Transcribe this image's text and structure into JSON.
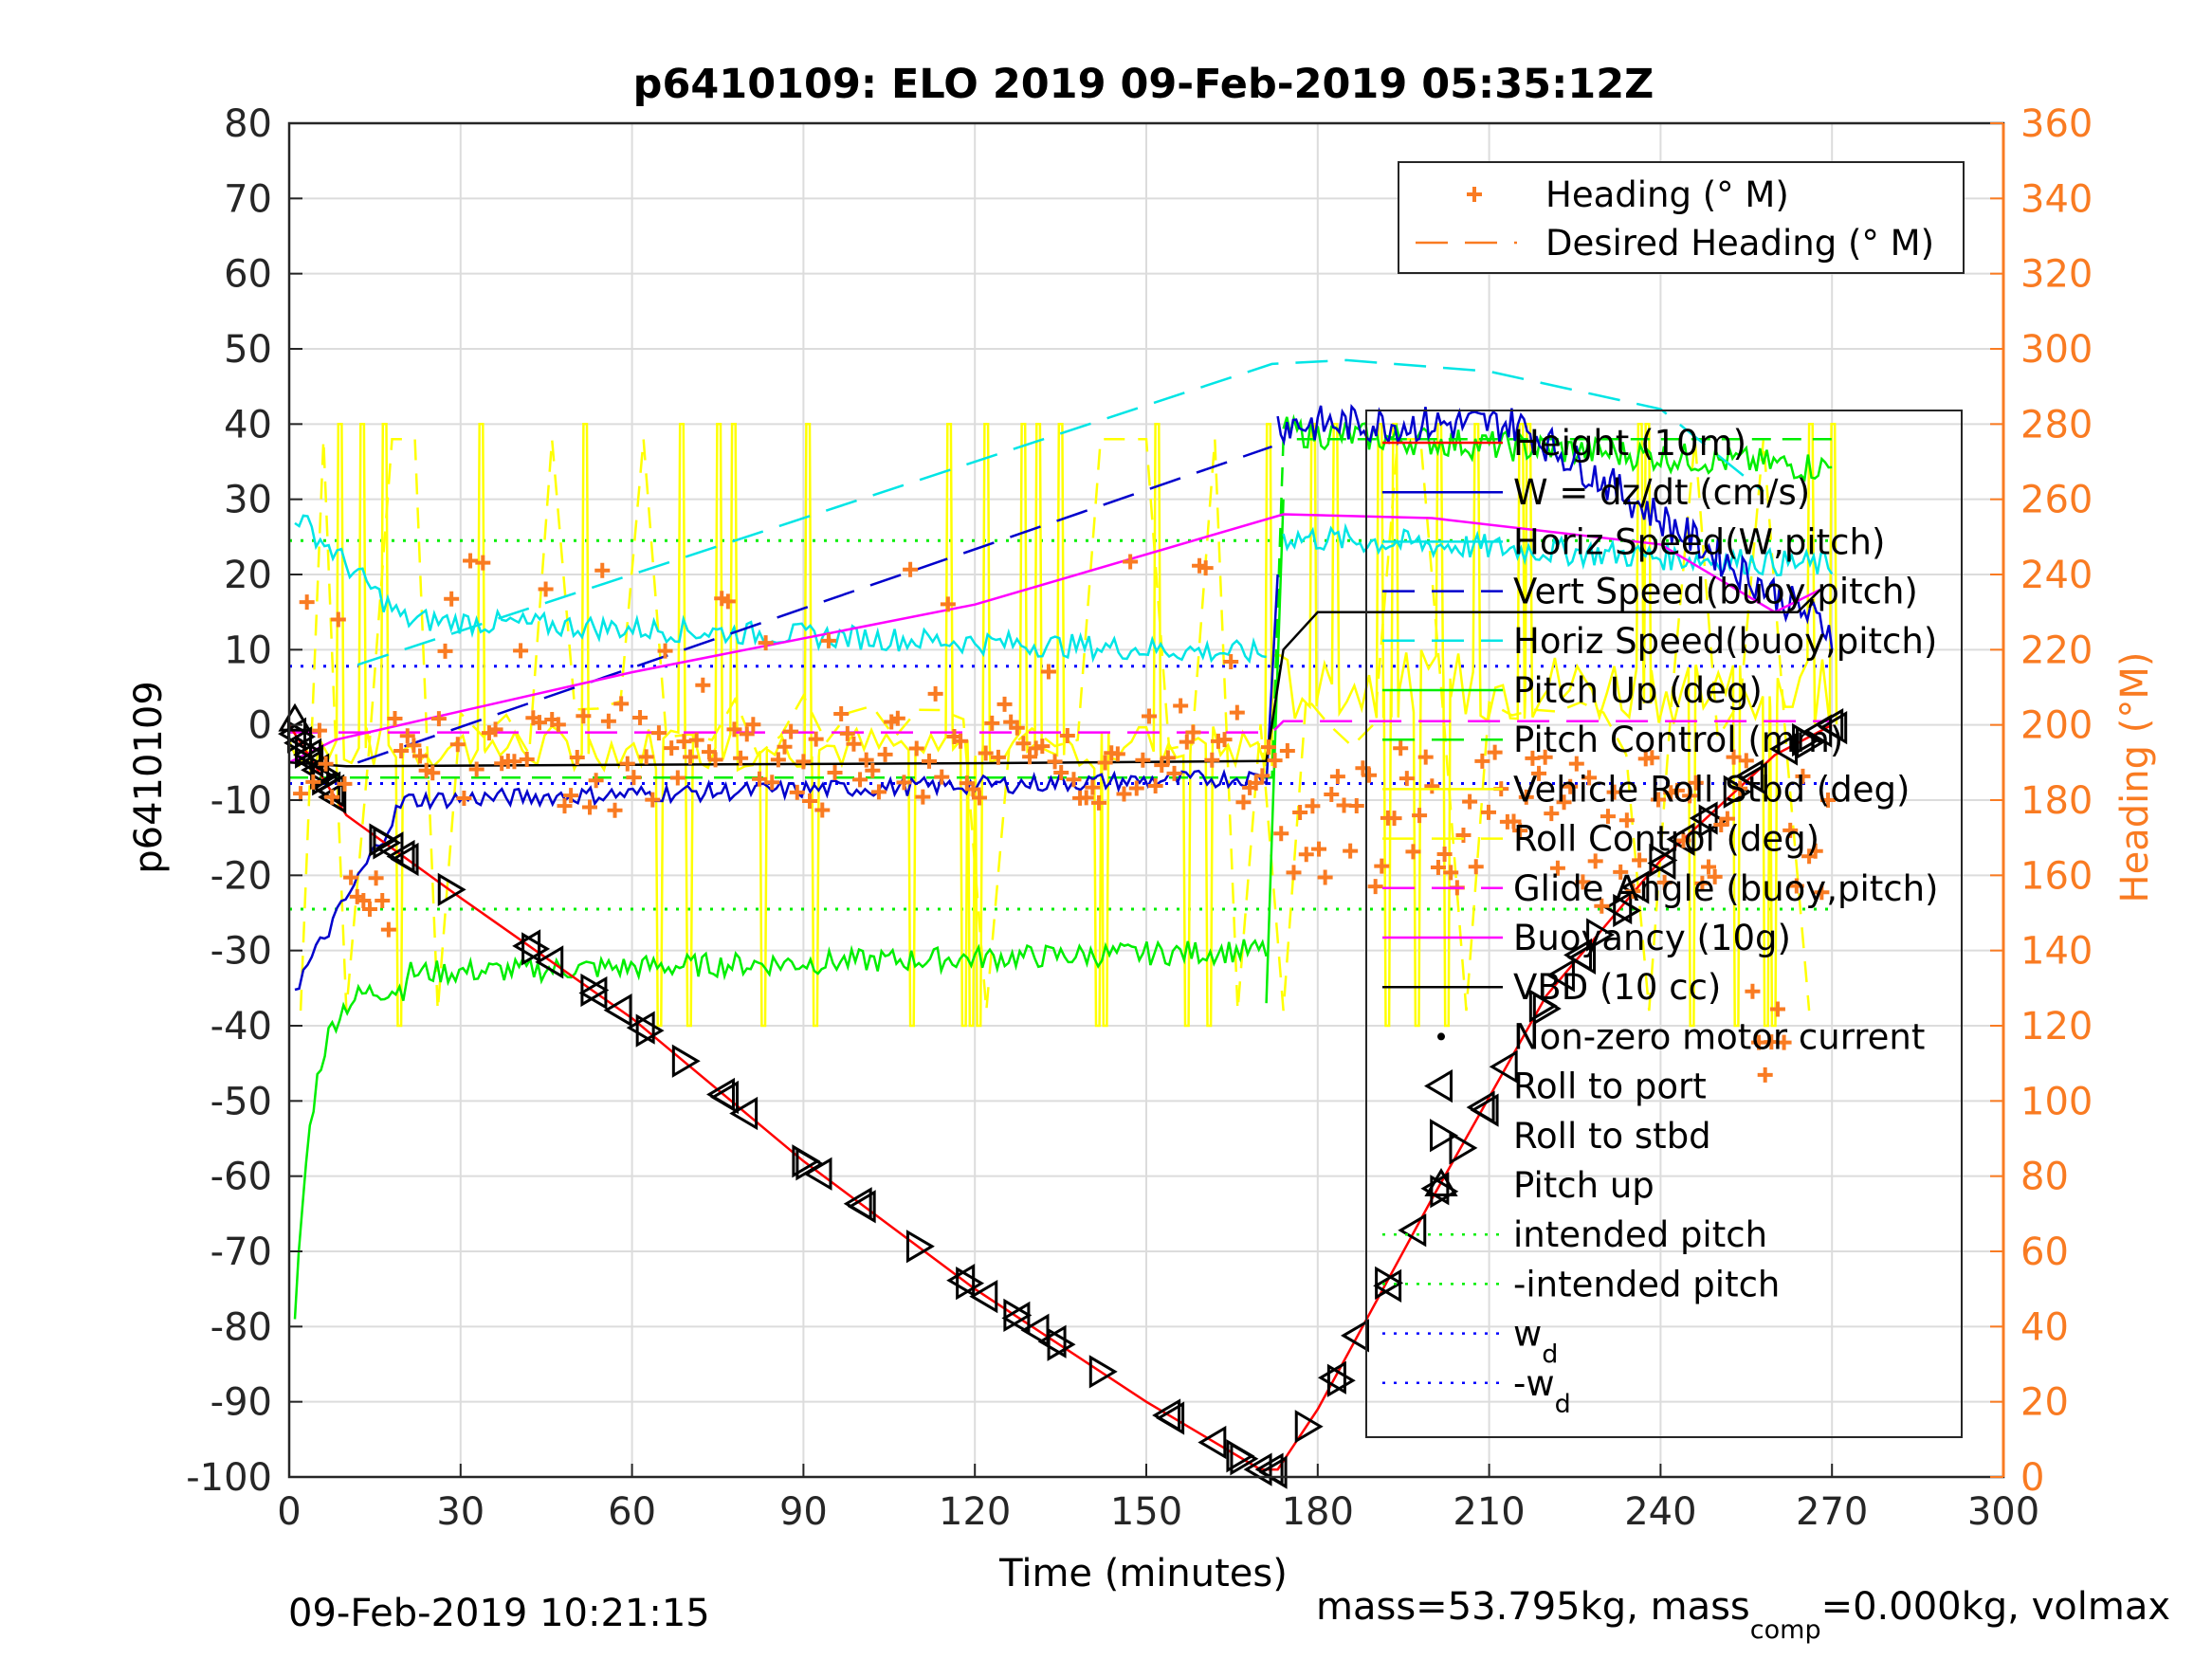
{
  "chart_data": {
    "type": "line",
    "title": "p6410109: ELO 2019 09-Feb-2019 05:35:12Z",
    "xlabel": "Time (minutes)",
    "ylabel": "p6410109",
    "y2label": "Heading (°M)",
    "xlim": [
      0,
      300
    ],
    "ylim": [
      -100,
      80
    ],
    "y2lim": [
      0,
      360
    ],
    "xticks": [
      0,
      30,
      60,
      90,
      120,
      150,
      180,
      210,
      240,
      270,
      300
    ],
    "yticks": [
      80,
      70,
      60,
      50,
      40,
      30,
      20,
      10,
      0,
      -10,
      -20,
      -30,
      -40,
      -50,
      -60,
      -70,
      -80,
      -90,
      -100
    ],
    "y2ticks": [
      360,
      340,
      320,
      300,
      280,
      260,
      240,
      220,
      200,
      180,
      160,
      140,
      120,
      100,
      80,
      60,
      40,
      20,
      0
    ],
    "grid": true,
    "colors": {
      "heading": "#f97b22",
      "axis_right": "#f97b22"
    },
    "legend_top": [
      {
        "label": "Heading (° M)",
        "marker": "plus",
        "color": "#f97b22"
      },
      {
        "label": "Desired Heading (° M)",
        "style": "dashed",
        "color": "#f97b22"
      }
    ],
    "legend_main": [
      {
        "label": "Height (10m)",
        "style": "solid",
        "color": "#ff0000"
      },
      {
        "label": "W = dz/dt (cm/s)",
        "style": "solid",
        "color": "#0000cc"
      },
      {
        "label": "Horiz Speed(W,pitch)",
        "style": "solid",
        "color": "#00e5e5"
      },
      {
        "label": "Vert Speed(buoy,pitch)",
        "style": "dashed",
        "color": "#0000cc"
      },
      {
        "label": "Horiz Speed(buoy,pitch)",
        "style": "dashed",
        "color": "#00e5e5"
      },
      {
        "label": "Pitch Up (deg)",
        "style": "solid",
        "color": "#00ee00"
      },
      {
        "label": "Pitch Control (mm)",
        "style": "dashed",
        "color": "#00ee00"
      },
      {
        "label": "Vehicle Roll Stbd (deg)",
        "style": "solid",
        "color": "#ffff00"
      },
      {
        "label": "Roll Control (deg)",
        "style": "dashed",
        "color": "#ffff00"
      },
      {
        "label": "Glide Angle (buoy,pitch)",
        "style": "dashed",
        "color": "#ff00ff"
      },
      {
        "label": "Buoyancy (10g)",
        "style": "solid",
        "color": "#ff00ff"
      },
      {
        "label": "VBD (10 cc)",
        "style": "solid",
        "color": "#000000"
      },
      {
        "label": "Non-zero motor current",
        "marker": "dot",
        "color": "#000000"
      },
      {
        "label": "Roll to port",
        "marker": "tri-left",
        "color": "#000000"
      },
      {
        "label": "Roll to stbd",
        "marker": "tri-right",
        "color": "#000000"
      },
      {
        "label": "Pitch up",
        "marker": "tri-up",
        "color": "#000000"
      },
      {
        "label": "intended pitch",
        "style": "dotted",
        "color": "#00ee00"
      },
      {
        "label": "-intended pitch",
        "style": "dotted",
        "color": "#00ee00"
      },
      {
        "label": "w",
        "sub": "d",
        "style": "dotted",
        "color": "#0000ff"
      },
      {
        "label": "-w",
        "sub": "d",
        "style": "dotted",
        "color": "#0000ff"
      }
    ],
    "series": [
      {
        "name": "Height (10m)",
        "x": [
          0,
          10,
          30,
          60,
          90,
          120,
          150,
          170,
          173,
          180,
          200,
          220,
          240,
          260,
          270
        ],
        "y": [
          0,
          -12,
          -23,
          -39,
          -58,
          -75,
          -90,
          -99,
          -99,
          -91,
          -63,
          -36,
          -18,
          -4,
          0
        ]
      },
      {
        "name": "Vert Speed(buoy,pitch)",
        "x": [
          12,
          172
        ],
        "y": [
          -5,
          37
        ]
      },
      {
        "name": "Horiz Speed(buoy,pitch)",
        "x": [
          12,
          172,
          185,
          210,
          240,
          258
        ],
        "y": [
          8,
          48,
          48.5,
          47,
          42,
          31
        ]
      },
      {
        "name": "Buoyancy (10g)",
        "x": [
          0,
          8,
          60,
          120,
          174,
          200,
          240,
          260,
          268
        ],
        "y": [
          -5,
          -2,
          7,
          16,
          28,
          27.5,
          24,
          15,
          18
        ]
      },
      {
        "name": "VBD (10 cc)",
        "x": [
          0,
          10,
          60,
          120,
          171,
          174,
          180,
          264,
          268
        ],
        "y": [
          -5,
          -5.5,
          -5.3,
          -5.1,
          -4.8,
          10,
          15,
          15,
          18
        ]
      },
      {
        "name": "Glide Angle (buoy,pitch)",
        "x": [
          0,
          172,
          174,
          270
        ],
        "y": [
          -1,
          -1,
          0.5,
          0.5
        ]
      },
      {
        "name": "intended pitch",
        "x": [
          0,
          270
        ],
        "y": [
          24.5,
          24.5
        ]
      },
      {
        "name": "-intended pitch",
        "x": [
          0,
          270
        ],
        "y": [
          -24.5,
          -24.5
        ]
      },
      {
        "name": "w",
        "x": [
          0,
          270
        ],
        "y": [
          7.8,
          7.8
        ]
      },
      {
        "name": "-w",
        "x": [
          0,
          270
        ],
        "y": [
          -7.8,
          -7.8
        ]
      }
    ]
  },
  "footer": {
    "date": "09-Feb-2019 10:21:15",
    "mass_pre": "mass=53.795kg, mass",
    "mass_sub": "comp",
    "mass_post": "=0.000kg, volmax"
  }
}
